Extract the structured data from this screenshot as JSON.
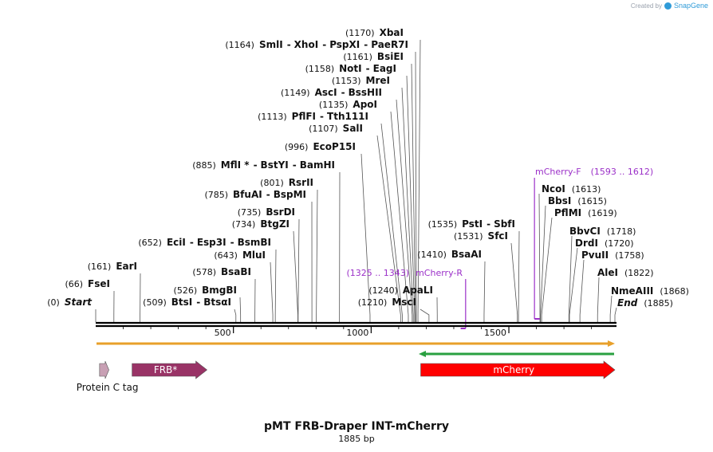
{
  "credit": {
    "prefix": "Created by",
    "brand": "SnapGene"
  },
  "title": "pMT FRB-Draper INT-mCherry",
  "subtitle": "1885 bp",
  "total_bp": 1885,
  "sites_left": [
    {
      "pos": "(1170)",
      "names": [
        "XbaI"
      ],
      "line_bp": 1170
    },
    {
      "pos": "(1164)",
      "names": [
        "SmlI",
        "XhoI",
        "PspXI",
        "PaeR7I"
      ],
      "line_bp": 1164
    },
    {
      "pos": "(1161)",
      "names": [
        "BsiEI"
      ],
      "line_bp": 1161
    },
    {
      "pos": "(1158)",
      "names": [
        "NotI",
        "EagI"
      ],
      "line_bp": 1158
    },
    {
      "pos": "(1153)",
      "names": [
        "MreI"
      ],
      "line_bp": 1153
    },
    {
      "pos": "(1149)",
      "names": [
        "AscI",
        "BssHII"
      ],
      "line_bp": 1149
    },
    {
      "pos": "(1135)",
      "names": [
        "ApoI"
      ],
      "line_bp": 1135
    },
    {
      "pos": "(1113)",
      "names": [
        "PflFI",
        "Tth111I"
      ],
      "line_bp": 1113
    },
    {
      "pos": "(1107)",
      "names": [
        "SalI"
      ],
      "line_bp": 1107
    },
    {
      "pos": "(996)",
      "names": [
        "EcoP15I"
      ],
      "line_bp": 996
    },
    {
      "pos": "(885)",
      "names": [
        "MflI *",
        "BstYI",
        "BamHI"
      ],
      "line_bp": 885
    },
    {
      "pos": "(801)",
      "names": [
        "RsrII"
      ],
      "line_bp": 801
    },
    {
      "pos": "(785)",
      "names": [
        "BfuAI",
        "BspMI"
      ],
      "line_bp": 785
    },
    {
      "pos": "(735)",
      "names": [
        "BsrDI"
      ],
      "line_bp": 735
    },
    {
      "pos": "(734)",
      "names": [
        "BtgZI"
      ],
      "line_bp": 734
    },
    {
      "pos": "(652)",
      "names": [
        "EciI",
        "Esp3I",
        "BsmBI"
      ],
      "line_bp": 652
    },
    {
      "pos": "(643)",
      "names": [
        "MluI"
      ],
      "line_bp": 643
    },
    {
      "pos": "(578)",
      "names": [
        "BsaBI"
      ],
      "line_bp": 578
    },
    {
      "pos": "(526)",
      "names": [
        "BmgBI"
      ],
      "line_bp": 526
    },
    {
      "pos": "(509)",
      "names": [
        "BtsI",
        "BtsαI"
      ],
      "line_bp": 509
    },
    {
      "pos": "(161)",
      "names": [
        "EarI"
      ],
      "line_bp": 161
    },
    {
      "pos": "(66)",
      "names": [
        "FseI"
      ],
      "line_bp": 66
    },
    {
      "pos": "(0)",
      "names": [
        "Start"
      ],
      "line_bp": 0
    },
    {
      "pos": "(1240)",
      "names": [
        "ApaLI"
      ],
      "line_bp": 1240
    },
    {
      "pos": "(1210)",
      "names": [
        "MscI"
      ],
      "line_bp": 1210
    },
    {
      "pos": "(1410)",
      "names": [
        "BsaAI"
      ],
      "line_bp": 1410
    },
    {
      "pos": "(1535)",
      "names": [
        "PstI",
        "SbfI"
      ],
      "line_bp": 1535
    },
    {
      "pos": "(1531)",
      "names": [
        "SfcI"
      ],
      "line_bp": 1531
    }
  ],
  "sites_right": [
    {
      "names": [
        "NcoI"
      ],
      "pos": "(1613)",
      "line_bp": 1613
    },
    {
      "names": [
        "BbsI"
      ],
      "pos": "(1615)",
      "line_bp": 1615
    },
    {
      "names": [
        "PflMI"
      ],
      "pos": "(1619)",
      "line_bp": 1619
    },
    {
      "names": [
        "BbvCI"
      ],
      "pos": "(1718)",
      "line_bp": 1718
    },
    {
      "names": [
        "DrdI"
      ],
      "pos": "(1720)",
      "line_bp": 1720
    },
    {
      "names": [
        "PvuII"
      ],
      "pos": "(1758)",
      "line_bp": 1758
    },
    {
      "names": [
        "AleI"
      ],
      "pos": "(1822)",
      "line_bp": 1822
    },
    {
      "names": [
        "NmeAIII"
      ],
      "pos": "(1868)",
      "line_bp": 1868
    },
    {
      "names": [
        "End"
      ],
      "pos": "(1885)",
      "line_bp": 1885
    }
  ],
  "primers": [
    {
      "name": "mCherry-R",
      "range": "(1325 .. 1343)",
      "direction": "reverse",
      "start_bp": 1325,
      "end_bp": 1343
    },
    {
      "name": "mCherry-F",
      "range": "(1593 .. 1612)",
      "direction": "forward",
      "start_bp": 1593,
      "end_bp": 1612
    }
  ],
  "ruler_ticks": [
    "500",
    "1000",
    "1500"
  ],
  "features": [
    {
      "name": "Protein C tag",
      "start_bp": 14,
      "end_bp": 48,
      "color": "#c8a0b4",
      "label_position": "below"
    },
    {
      "name": "FRB*",
      "start_bp": 132,
      "end_bp": 404,
      "color": "#993366",
      "label_position": "inside"
    },
    {
      "name": "mCherry",
      "start_bp": 1180,
      "end_bp": 1885,
      "color": "#ff0000",
      "label_position": "inside"
    }
  ],
  "colors": {
    "primer": "#9b30c8",
    "orf_orange": "#e8a02a",
    "orf_green": "#2aa040",
    "backbone": "#000000"
  }
}
